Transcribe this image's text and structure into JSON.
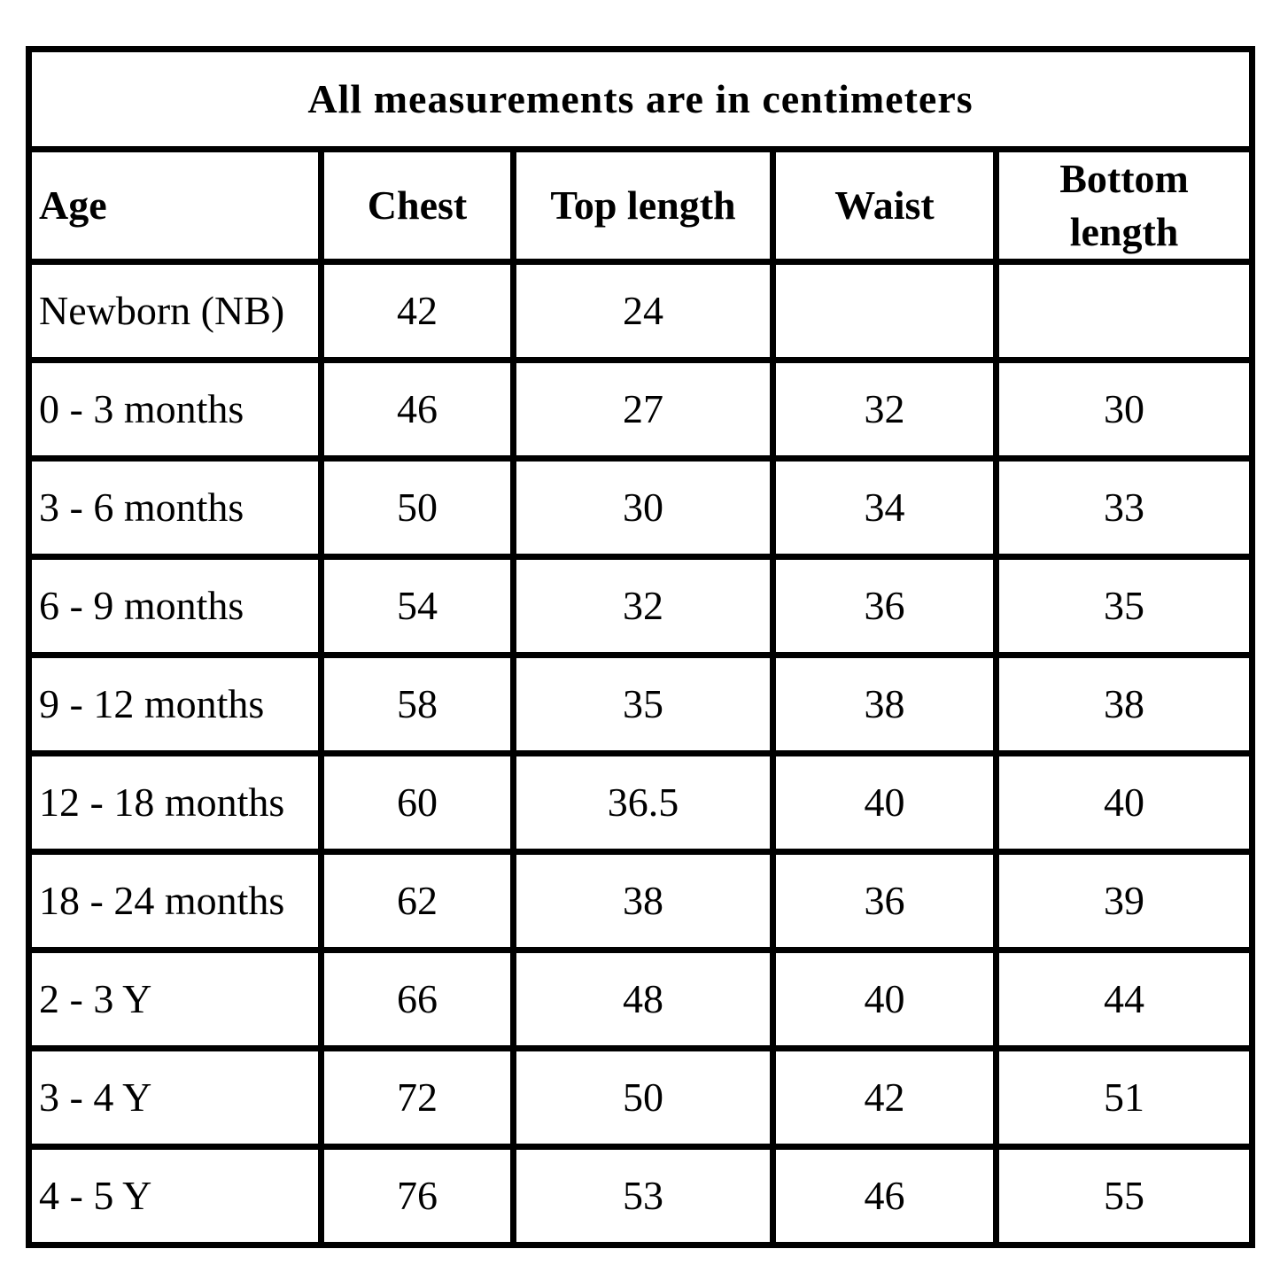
{
  "colors": {
    "border": "#000000",
    "background": "#ffffff",
    "text": "#000000"
  },
  "chart_data": {
    "type": "table",
    "title": "All measurements are in centimeters",
    "unit": "centimeters",
    "columns": [
      "Age",
      "Chest",
      "Top length",
      "Waist",
      "Bottom length"
    ],
    "rows": [
      [
        "Newborn (NB)",
        "42",
        "24",
        "",
        ""
      ],
      [
        "0 - 3 months",
        "46",
        "27",
        "32",
        "30"
      ],
      [
        "3 - 6 months",
        "50",
        "30",
        "34",
        "33"
      ],
      [
        "6 - 9 months",
        "54",
        "32",
        "36",
        "35"
      ],
      [
        "9 - 12 months",
        "58",
        "35",
        "38",
        "38"
      ],
      [
        "12 - 18 months",
        "60",
        "36.5",
        "40",
        "40"
      ],
      [
        "18 - 24 months",
        "62",
        "38",
        "36",
        "39"
      ],
      [
        "2 - 3 Y",
        "66",
        "48",
        "40",
        "44"
      ],
      [
        "3 - 4 Y",
        "72",
        "50",
        "42",
        "51"
      ],
      [
        "4 - 5 Y",
        "76",
        "53",
        "46",
        "55"
      ]
    ]
  }
}
